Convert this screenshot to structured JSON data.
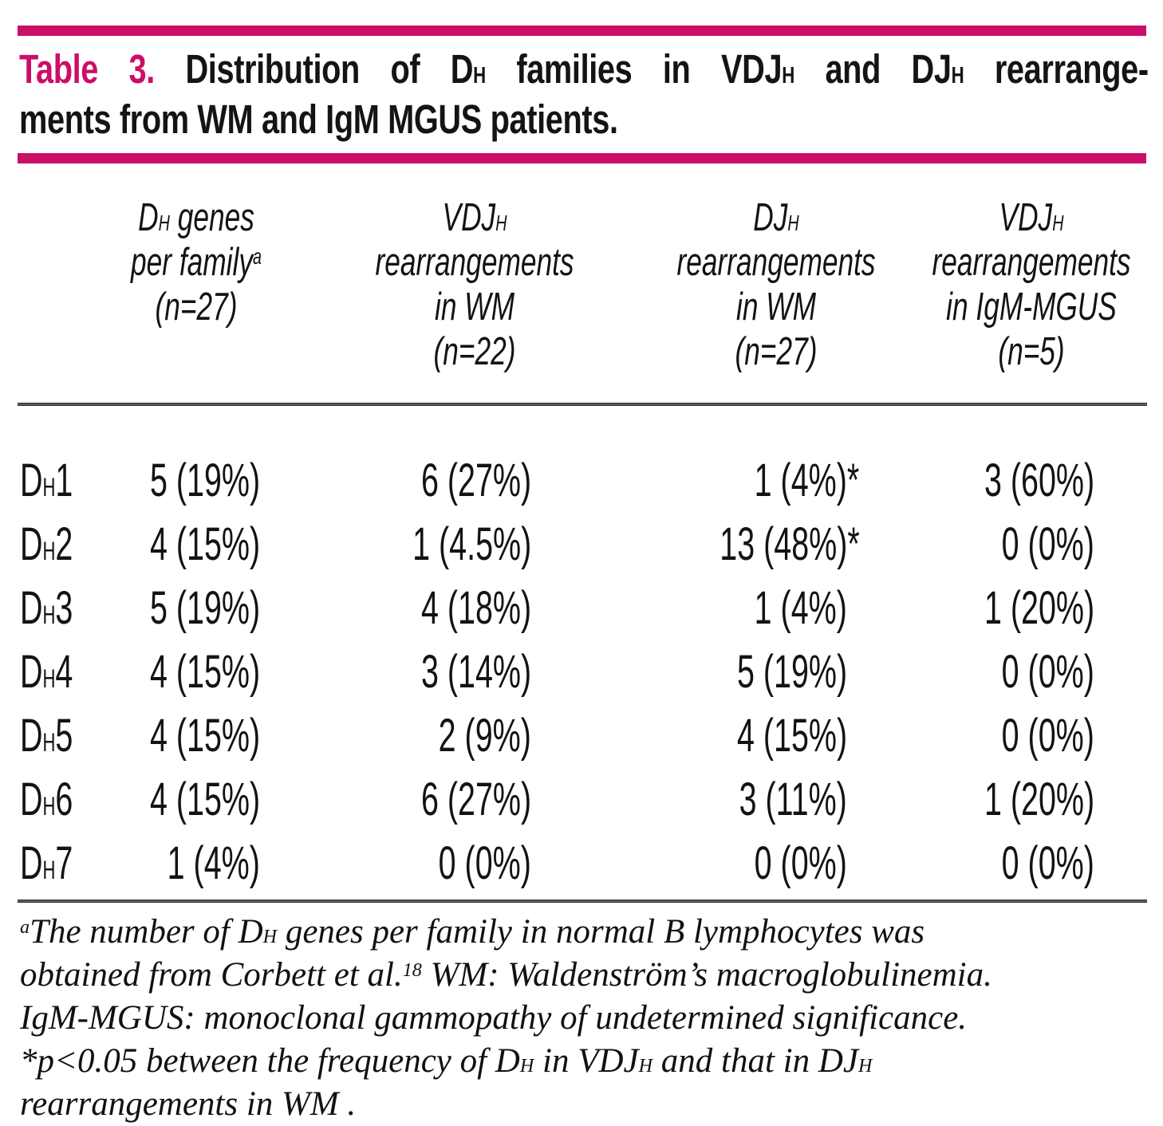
{
  "colors": {
    "accent_magenta": "#cb0e68",
    "rule_dark": "#2e2e2e",
    "text": "#131313"
  },
  "title": {
    "label": "Table 3.",
    "line1": "Distribution of D_H_ families in VDJ_H_ and DJ_H_ rearrange-",
    "line2": "ments from WM and IgM MGUS patients."
  },
  "table": {
    "headers": [
      {
        "lines": [
          "D_H_ genes",
          "per family^a^",
          "(n=27)"
        ]
      },
      {
        "lines": [
          "VDJ_H_",
          "rearrangements",
          "in WM",
          "(n=22)"
        ]
      },
      {
        "lines": [
          "DJ_H_",
          "rearrangements",
          "in WM",
          "(n=27)"
        ]
      },
      {
        "lines": [
          "VDJ_H_",
          "rearrangements",
          "in IgM-MGUS",
          "(n=5)"
        ]
      }
    ],
    "rows": [
      {
        "label": "D_H_1",
        "dh_genes": "5 (19%)",
        "vdj_wm": "6 (27%)",
        "dj_wm": "1 (4%)~*~",
        "vdj_mgus": "3 (60%)"
      },
      {
        "label": "D_H_2",
        "dh_genes": "4 (15%)",
        "vdj_wm": "1 (4.5%)",
        "dj_wm": "13 (48%)~*~",
        "vdj_mgus": "0 (0%)"
      },
      {
        "label": "D_H_3",
        "dh_genes": "5 (19%)",
        "vdj_wm": "4 (18%)",
        "dj_wm": "1 (4%)",
        "vdj_mgus": "1 (20%)"
      },
      {
        "label": "D_H_4",
        "dh_genes": "4 (15%)",
        "vdj_wm": "3 (14%)",
        "dj_wm": "5 (19%)",
        "vdj_mgus": "0 (0%)"
      },
      {
        "label": "D_H_5",
        "dh_genes": "4 (15%)",
        "vdj_wm": "2 (9%)",
        "dj_wm": "4 (15%)",
        "vdj_mgus": "0 (0%)"
      },
      {
        "label": "D_H_6",
        "dh_genes": "4 (15%)",
        "vdj_wm": "6 (27%)",
        "dj_wm": "3 (11%)",
        "vdj_mgus": "1 (20%)"
      },
      {
        "label": "D_H_7",
        "dh_genes": "1 (4%)",
        "vdj_wm": "0 (0%)",
        "dj_wm": "0 (0%)",
        "vdj_mgus": "0 (0%)"
      }
    ]
  },
  "footnote": {
    "lines": [
      "^a^The number of D_H_ genes per family in normal B lymphocytes was",
      "obtained from Corbett et al.^18^ WM: Waldenström’s macroglobulinemia.",
      "IgM-MGUS: monoclonal gammopathy of undetermined significance.",
      "*p<0.05 between the frequency of D_H_ in VDJ_H_ and that in DJ_H_",
      "rearrangements in WM ."
    ]
  }
}
